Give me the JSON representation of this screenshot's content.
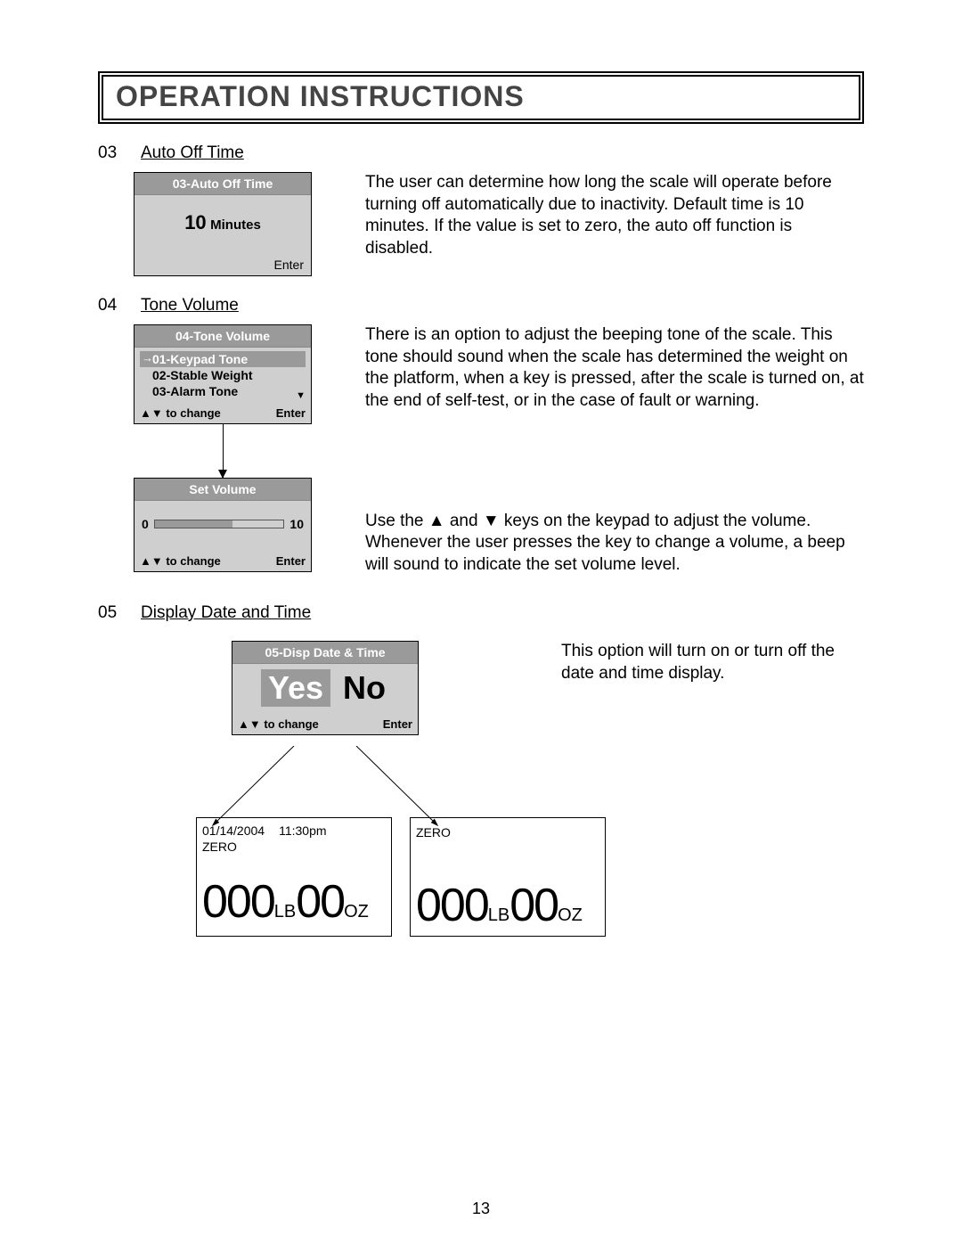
{
  "header": {
    "title": "OPERATION INSTRUCTIONS"
  },
  "page_number": "13",
  "section03": {
    "num": "03",
    "title": "Auto Off Time",
    "screen_title": "03-Auto Off Time",
    "value": "10",
    "unit": "Minutes",
    "enter": "Enter",
    "description": "The user can determine how long the scale will operate before turning off automatically due to inactivity. Default time is 10 minutes. If the value is set to zero, the auto off function is disabled."
  },
  "section04": {
    "num": "04",
    "title": "Tone Volume",
    "screen1_title": "04-Tone Volume",
    "row_selected": "01-Keypad Tone",
    "row2": "02-Stable Weight",
    "row3": "03-Alarm Tone",
    "footer_left": "▲▼ to change",
    "footer_right": "Enter",
    "description1": "There is an option to adjust the beeping tone of the scale. This tone should sound when the scale has determined the weight on the platform, when a key is pressed, after the scale is turned on, at the end of self-test, or in the case of fault or warning.",
    "screen2_title": "Set Volume",
    "vol_min": "0",
    "vol_max": "10",
    "vol_fill_pct": 60,
    "description2": "Use the ▲ and ▼ keys on the keypad to adjust the volume.\nWhenever the user presses the key to change a volume, a beep will sound to indicate the set volume level."
  },
  "section05": {
    "num": "05",
    "title": "Display Date and Time",
    "screen_title": "05-Disp Date & Time",
    "yes": "Yes",
    "no": "No",
    "footer_left": "▲▼ to change",
    "footer_right": "Enter",
    "description": "This option will turn on or turn off the date and time display.",
    "lcd_date": "01/14/2004",
    "lcd_time": "11:30pm",
    "lcd_zero": "ZERO",
    "lcd_d1": "000",
    "lcd_u1": "LB",
    "lcd_d2": "00",
    "lcd_u2": "OZ"
  }
}
